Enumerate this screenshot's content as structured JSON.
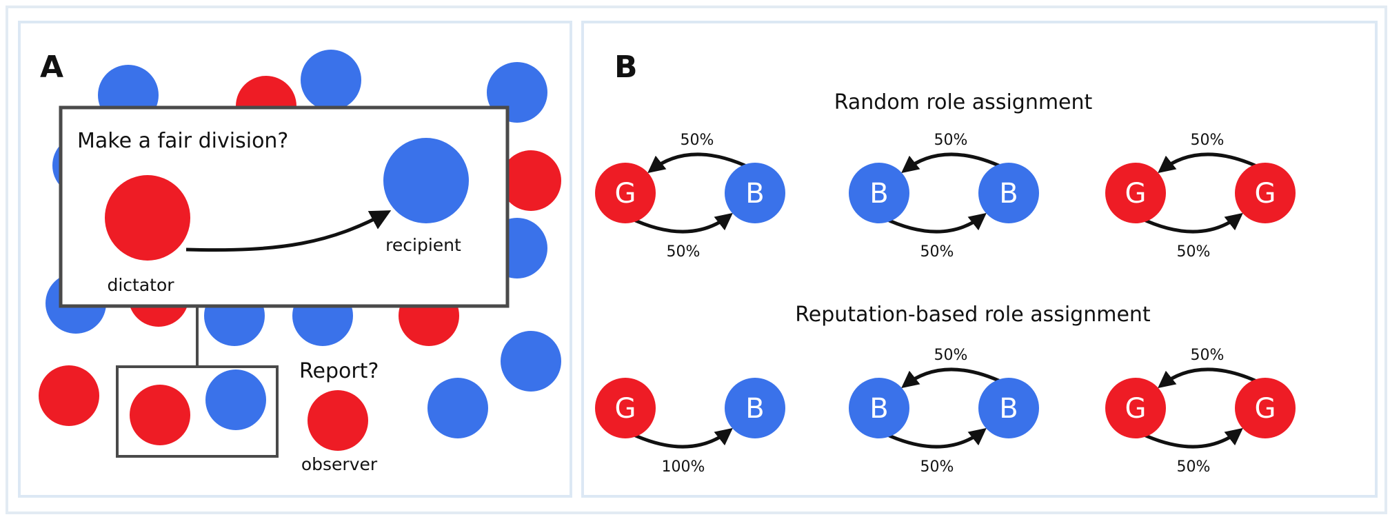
{
  "panel_a": {
    "letter": "A",
    "question_box": {
      "title": "Make a fair division?",
      "dictator_label": "dictator",
      "recipient_label": "recipient"
    },
    "report_label": "Report?",
    "observer_label": "observer"
  },
  "panel_b": {
    "letter": "B",
    "sections": [
      {
        "title": "Random role assignment",
        "pairs": [
          {
            "left": "G",
            "right": "B",
            "top_pct": "50%",
            "bottom_pct": "50%"
          },
          {
            "left": "B",
            "right": "B",
            "top_pct": "50%",
            "bottom_pct": "50%"
          },
          {
            "left": "G",
            "right": "G",
            "top_pct": "50%",
            "bottom_pct": "50%"
          }
        ]
      },
      {
        "title": "Reputation-based role assignment",
        "pairs": [
          {
            "left": "G",
            "right": "B",
            "top_pct": "",
            "bottom_pct": "100%"
          },
          {
            "left": "B",
            "right": "B",
            "top_pct": "50%",
            "bottom_pct": "50%"
          },
          {
            "left": "G",
            "right": "G",
            "top_pct": "50%",
            "bottom_pct": "50%"
          }
        ]
      }
    ]
  },
  "colors": {
    "red": "#ee1c25",
    "blue": "#3a72ea",
    "frame": "#4a4a4a"
  }
}
